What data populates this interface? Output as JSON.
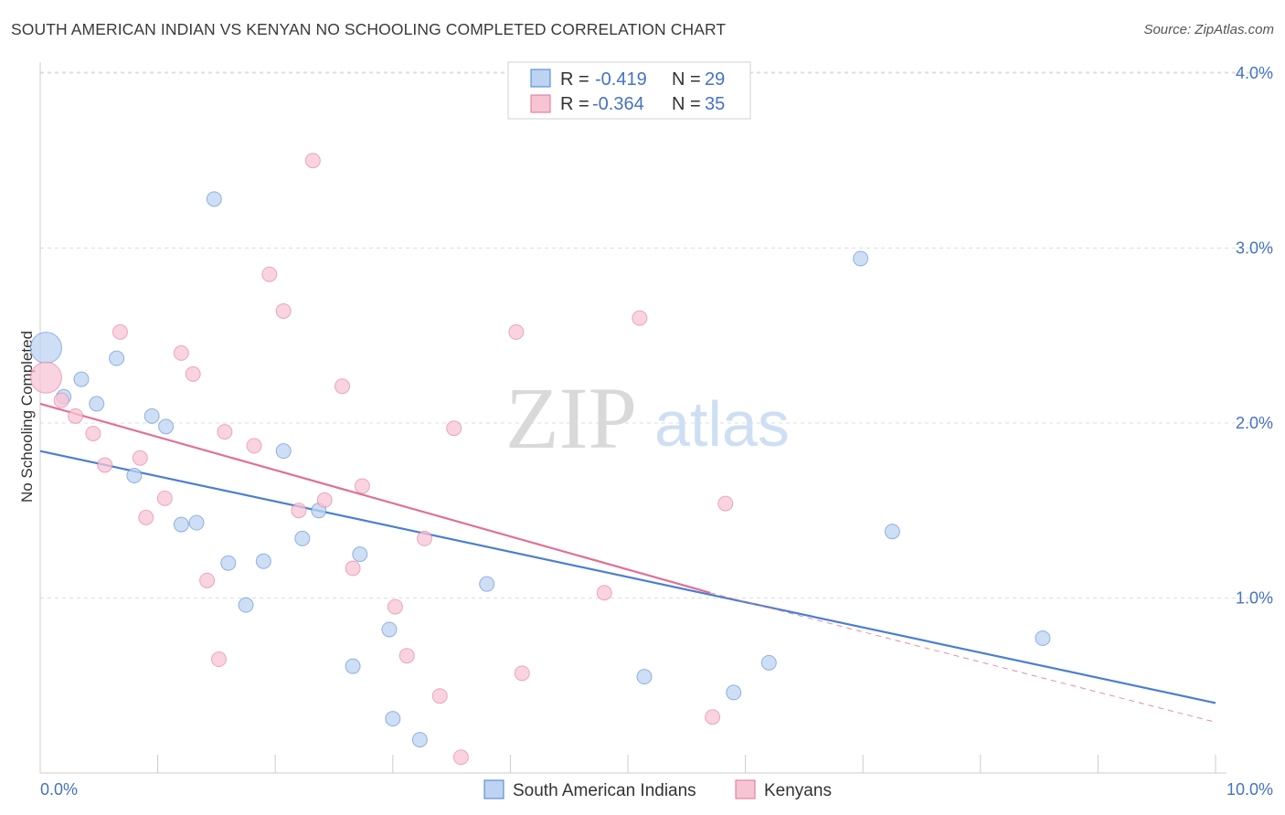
{
  "header": {
    "title": "SOUTH AMERICAN INDIAN VS KENYAN NO SCHOOLING COMPLETED CORRELATION CHART",
    "source": "Source: ZipAtlas.com"
  },
  "watermark": {
    "zip": "ZIP",
    "atlas": "atlas"
  },
  "legend_top": {
    "rows": [
      {
        "r_label": "R =",
        "r_value": "-0.419",
        "n_label": "N =",
        "n_value": "29"
      },
      {
        "r_label": "R =",
        "r_value": "-0.364",
        "n_label": "N =",
        "n_value": "35"
      }
    ]
  },
  "chart_data": {
    "type": "scatter",
    "title": "SOUTH AMERICAN INDIAN VS KENYAN NO SCHOOLING COMPLETED CORRELATION CHART",
    "xlabel": "",
    "ylabel": "No Schooling Completed",
    "xlim": [
      0,
      10
    ],
    "ylim": [
      0,
      4.2
    ],
    "x_tick_labels": [
      "0.0%",
      "10.0%"
    ],
    "y_ticks": [
      1,
      2,
      3,
      4
    ],
    "y_tick_labels": [
      "1.0%",
      "2.0%",
      "3.0%",
      "4.0%"
    ],
    "grid": true,
    "legend_placement": "top-center and bottom-center",
    "colors": {
      "south_american_indians": "#4a7fd0",
      "south_american_indians_fill": "#bcd3f2",
      "kenyans": "#e07096",
      "kenyans_fill": "#f7c4d4",
      "value_text": "#4472c4"
    },
    "series": [
      {
        "name": "South American Indians",
        "r": -0.419,
        "n": 29,
        "trend": {
          "x": [
            0,
            10
          ],
          "y": [
            1.84,
            0.4
          ]
        },
        "points": [
          {
            "x": 0.05,
            "y": 2.43,
            "big": true
          },
          {
            "x": 0.2,
            "y": 2.15
          },
          {
            "x": 0.35,
            "y": 2.25
          },
          {
            "x": 0.48,
            "y": 2.11
          },
          {
            "x": 0.65,
            "y": 2.37
          },
          {
            "x": 0.8,
            "y": 1.7
          },
          {
            "x": 0.95,
            "y": 2.04
          },
          {
            "x": 1.07,
            "y": 1.98
          },
          {
            "x": 1.2,
            "y": 1.42
          },
          {
            "x": 1.33,
            "y": 1.43
          },
          {
            "x": 1.48,
            "y": 3.28
          },
          {
            "x": 1.6,
            "y": 1.2
          },
          {
            "x": 1.75,
            "y": 0.96
          },
          {
            "x": 1.9,
            "y": 1.21
          },
          {
            "x": 2.07,
            "y": 1.84
          },
          {
            "x": 2.23,
            "y": 1.34
          },
          {
            "x": 2.37,
            "y": 1.5
          },
          {
            "x": 2.66,
            "y": 0.61
          },
          {
            "x": 2.72,
            "y": 1.25
          },
          {
            "x": 2.97,
            "y": 0.82
          },
          {
            "x": 3.0,
            "y": 0.31
          },
          {
            "x": 3.23,
            "y": 0.19
          },
          {
            "x": 3.8,
            "y": 1.08
          },
          {
            "x": 5.14,
            "y": 0.55
          },
          {
            "x": 5.9,
            "y": 0.46
          },
          {
            "x": 6.2,
            "y": 0.63
          },
          {
            "x": 6.98,
            "y": 2.94
          },
          {
            "x": 7.25,
            "y": 1.38
          },
          {
            "x": 8.53,
            "y": 0.77
          }
        ]
      },
      {
        "name": "Kenyans",
        "r": -0.364,
        "n": 35,
        "trend": {
          "x": [
            0,
            5.7
          ],
          "y": [
            2.11,
            1.03
          ]
        },
        "trend_dashed": {
          "x": [
            5.7,
            10
          ],
          "y": [
            1.03,
            0.29
          ]
        },
        "points": [
          {
            "x": 0.05,
            "y": 2.26,
            "big": true
          },
          {
            "x": 0.18,
            "y": 2.13
          },
          {
            "x": 0.3,
            "y": 2.04
          },
          {
            "x": 0.45,
            "y": 1.94
          },
          {
            "x": 0.55,
            "y": 1.76
          },
          {
            "x": 0.68,
            "y": 2.52
          },
          {
            "x": 0.85,
            "y": 1.8
          },
          {
            "x": 0.9,
            "y": 1.46
          },
          {
            "x": 1.06,
            "y": 1.57
          },
          {
            "x": 1.2,
            "y": 2.4
          },
          {
            "x": 1.3,
            "y": 2.28
          },
          {
            "x": 1.42,
            "y": 1.1
          },
          {
            "x": 1.52,
            "y": 0.65
          },
          {
            "x": 1.57,
            "y": 1.95
          },
          {
            "x": 1.82,
            "y": 1.87
          },
          {
            "x": 1.95,
            "y": 2.85
          },
          {
            "x": 2.07,
            "y": 2.64
          },
          {
            "x": 2.2,
            "y": 1.5
          },
          {
            "x": 2.32,
            "y": 3.5
          },
          {
            "x": 2.42,
            "y": 1.56
          },
          {
            "x": 2.57,
            "y": 2.21
          },
          {
            "x": 2.66,
            "y": 1.17
          },
          {
            "x": 2.74,
            "y": 1.64
          },
          {
            "x": 3.02,
            "y": 0.95
          },
          {
            "x": 3.12,
            "y": 0.67
          },
          {
            "x": 3.27,
            "y": 1.34
          },
          {
            "x": 3.4,
            "y": 0.44
          },
          {
            "x": 3.52,
            "y": 1.97
          },
          {
            "x": 3.58,
            "y": 0.09
          },
          {
            "x": 4.05,
            "y": 2.52
          },
          {
            "x": 4.1,
            "y": 0.57
          },
          {
            "x": 4.8,
            "y": 1.03
          },
          {
            "x": 5.1,
            "y": 2.6
          },
          {
            "x": 5.72,
            "y": 0.32
          },
          {
            "x": 5.83,
            "y": 1.54
          }
        ]
      }
    ]
  },
  "legend_bottom": {
    "items": [
      {
        "label": "South American Indians"
      },
      {
        "label": "Kenyans"
      }
    ]
  }
}
